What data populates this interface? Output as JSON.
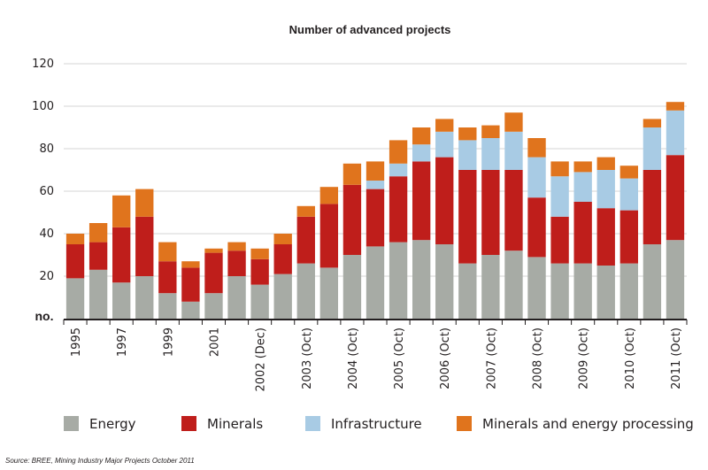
{
  "chart_data": {
    "type": "bar",
    "stacked": true,
    "title": "Number of advanced projects",
    "ylabel": "no.",
    "ylim": [
      0,
      120
    ],
    "yticks": [
      "20",
      "40",
      "60",
      "80",
      "100",
      "120"
    ],
    "grid": true,
    "legend_position": "bottom",
    "categories": [
      "1995",
      "1996",
      "1997",
      "1998",
      "1999",
      "2000",
      "2001",
      "2002 (Apr)",
      "2002 (Dec)",
      "2003 (Apr)",
      "2003 (Oct)",
      "2004 (Apr)",
      "2004 (Oct)",
      "2005 (Apr)",
      "2005 (Oct)",
      "2006 (Apr)",
      "2006 (Oct)",
      "2007 (Apr)",
      "2007 (Oct)",
      "2008 (Apr)",
      "2008 (Oct)",
      "2009 (Apr)",
      "2009 (Oct)",
      "2010 (Apr)",
      "2010 (Oct)",
      "2011 (Apr)",
      "2011 (Oct)"
    ],
    "tick_labels": [
      "1995",
      "",
      "1997",
      "",
      "1999",
      "",
      "2001",
      "",
      "2002 (Dec)",
      "",
      "2003 (Oct)",
      "",
      "2004 (Oct)",
      "",
      "2005 (Oct)",
      "",
      "2006 (Oct)",
      "",
      "2007 (Oct)",
      "",
      "2008 (Oct)",
      "",
      "2009 (Oct)",
      "",
      "2010 (Oct)",
      "",
      "2011 (Oct)"
    ],
    "series": [
      {
        "name": "Energy",
        "color": "#a7aba5",
        "values": [
          19,
          23,
          17,
          20,
          12,
          8,
          12,
          20,
          16,
          21,
          26,
          24,
          30,
          34,
          36,
          37,
          35,
          26,
          30,
          32,
          29,
          26,
          26,
          25,
          26,
          35,
          37
        ]
      },
      {
        "name": "Minerals",
        "color": "#bf1e1b",
        "values": [
          16,
          13,
          26,
          28,
          15,
          16,
          19,
          12,
          12,
          14,
          22,
          30,
          33,
          27,
          31,
          37,
          41,
          44,
          40,
          38,
          28,
          22,
          29,
          27,
          25,
          35,
          40
        ]
      },
      {
        "name": "Infrastructure",
        "color": "#a8cbe4",
        "values": [
          0,
          0,
          0,
          0,
          0,
          0,
          0,
          0,
          0,
          0,
          0,
          0,
          0,
          4,
          6,
          8,
          12,
          14,
          15,
          18,
          19,
          19,
          14,
          18,
          15,
          20,
          21
        ]
      },
      {
        "name": "Minerals and energy processing",
        "color": "#e0741d",
        "values": [
          5,
          9,
          15,
          13,
          9,
          3,
          2,
          4,
          5,
          5,
          5,
          8,
          10,
          9,
          11,
          8,
          6,
          6,
          6,
          9,
          9,
          7,
          5,
          6,
          6,
          4,
          4
        ]
      }
    ]
  },
  "source_text": "Source:  BREE, Mining Industry Major Projects October 2011"
}
